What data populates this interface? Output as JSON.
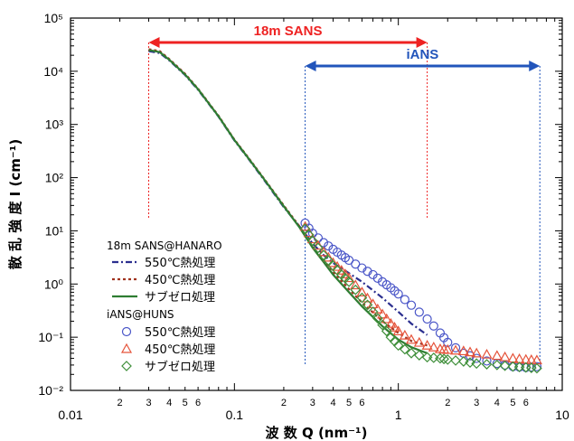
{
  "chart_data": {
    "type": "scatter",
    "xlabel": "波 数 Q (nm⁻¹)",
    "ylabel": "散 乱 強 度 I (cm⁻¹)",
    "xscale": "log",
    "yscale": "log",
    "xlim": [
      0.01,
      10
    ],
    "ylim": [
      0.01,
      100000
    ],
    "x_ticks": [
      "0.01",
      "0.1",
      "1",
      "10"
    ],
    "x_minor_labels": [
      "2",
      "3",
      "4",
      "5",
      "6"
    ],
    "y_ticks": [
      "10⁻²",
      "10⁻¹",
      "10⁰",
      "10¹",
      "10²",
      "10³",
      "10⁴",
      "10⁵"
    ],
    "range_markers": [
      {
        "label": "18m SANS",
        "from": 0.03,
        "to": 1.5,
        "color": "#ee2222"
      },
      {
        "label": "iANS",
        "from": 0.27,
        "to": 7.3,
        "color": "#2255bb"
      }
    ],
    "legend": {
      "placement": "bottom-left",
      "group1_title": "18m SANS@HANARO",
      "group2_title": "iANS@HUNS"
    },
    "series": [
      {
        "name": "550℃熱処理",
        "group": "18m SANS@HANARO",
        "style": "dash-dot",
        "color": "#2b2f8f",
        "x": [
          0.03,
          0.035,
          0.04,
          0.05,
          0.06,
          0.08,
          0.1,
          0.12,
          0.15,
          0.2,
          0.25,
          0.3,
          0.35,
          0.4,
          0.5,
          0.6,
          0.8,
          1.0,
          1.2,
          1.5
        ],
        "y": [
          24000,
          22000,
          16000,
          8500,
          4500,
          1400,
          500,
          240,
          95,
          28,
          12,
          5.8,
          3.5,
          2.5,
          1.6,
          1.1,
          0.55,
          0.3,
          0.18,
          0.11
        ]
      },
      {
        "name": "450℃熱処理",
        "group": "18m SANS@HANARO",
        "style": "dotted",
        "color": "#a0321e",
        "x": [
          0.03,
          0.035,
          0.04,
          0.05,
          0.06,
          0.08,
          0.1,
          0.12,
          0.15,
          0.2,
          0.25,
          0.3,
          0.35,
          0.4,
          0.5,
          0.6,
          0.8,
          1.0,
          1.2,
          1.5
        ],
        "y": [
          26000,
          24000,
          17000,
          9000,
          4700,
          1450,
          520,
          250,
          100,
          30,
          12,
          5.0,
          2.8,
          1.7,
          0.8,
          0.45,
          0.2,
          0.12,
          0.085,
          0.07
        ]
      },
      {
        "name": "サブゼロ処理",
        "group": "18m SANS@HANARO",
        "style": "solid",
        "color": "#2e7d32",
        "x": [
          0.03,
          0.035,
          0.04,
          0.05,
          0.06,
          0.08,
          0.1,
          0.12,
          0.15,
          0.2,
          0.25,
          0.3,
          0.35,
          0.4,
          0.5,
          0.6,
          0.8,
          1.0,
          1.2,
          1.5
        ],
        "y": [
          25000,
          23000,
          16500,
          8700,
          4600,
          1420,
          510,
          245,
          98,
          29,
          11.5,
          4.8,
          2.6,
          1.5,
          0.7,
          0.38,
          0.16,
          0.09,
          0.065,
          0.05
        ]
      },
      {
        "name": "550℃熱処理",
        "group": "iANS@HUNS",
        "marker": "circle",
        "color": "#4a56c8",
        "x": [
          0.27,
          0.3,
          0.35,
          0.4,
          0.45,
          0.5,
          0.6,
          0.7,
          0.8,
          0.9,
          1.0,
          1.2,
          1.5,
          1.8,
          2.0,
          2.5,
          3.0,
          4.0,
          5.0,
          6.0,
          7.0
        ],
        "y": [
          14,
          9,
          6,
          4.5,
          3.5,
          2.8,
          2.0,
          1.5,
          1.1,
          0.85,
          0.65,
          0.4,
          0.22,
          0.12,
          0.08,
          0.05,
          0.04,
          0.032,
          0.028,
          0.027,
          0.028
        ]
      },
      {
        "name": "450℃熱処理",
        "group": "iANS@HUNS",
        "marker": "triangle",
        "color": "#e5533a",
        "x": [
          0.27,
          0.3,
          0.35,
          0.4,
          0.45,
          0.5,
          0.6,
          0.7,
          0.8,
          0.9,
          1.0,
          1.2,
          1.5,
          1.8,
          2.0,
          2.5,
          3.0,
          4.0,
          5.0,
          6.0,
          7.0
        ],
        "y": [
          12,
          7,
          4,
          2.5,
          1.8,
          1.3,
          0.7,
          0.42,
          0.27,
          0.18,
          0.13,
          0.09,
          0.07,
          0.06,
          0.058,
          0.055,
          0.05,
          0.045,
          0.04,
          0.038,
          0.037
        ]
      },
      {
        "name": "サブゼロ処理",
        "group": "iANS@HUNS",
        "marker": "diamond",
        "color": "#3f8f3a",
        "x": [
          0.27,
          0.3,
          0.35,
          0.4,
          0.45,
          0.5,
          0.6,
          0.7,
          0.8,
          0.9,
          1.0,
          1.2,
          1.5,
          1.8,
          2.0,
          2.5,
          3.0,
          4.0,
          5.0,
          6.0,
          7.0
        ],
        "y": [
          11,
          6.5,
          3.5,
          2.2,
          1.5,
          1.1,
          0.55,
          0.3,
          0.17,
          0.1,
          0.07,
          0.05,
          0.042,
          0.04,
          0.038,
          0.035,
          0.032,
          0.03,
          0.028,
          0.027,
          0.026
        ]
      }
    ]
  }
}
